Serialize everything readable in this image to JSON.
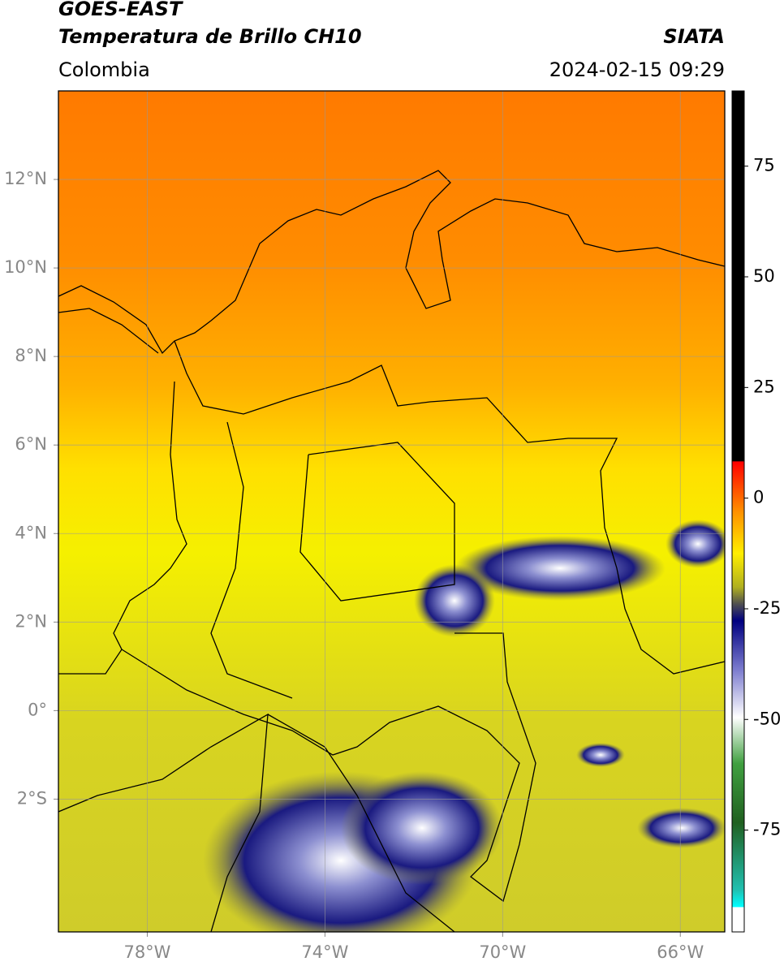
{
  "header": {
    "title": "GOES-EAST",
    "subtitle": "Temperatura de Brillo CH10",
    "source": "SIATA",
    "region": "Colombia",
    "datetime": "2024-02-15 09:29"
  },
  "chart_data": {
    "type": "map",
    "xlim": [
      -80,
      -65
    ],
    "ylim": [
      -5,
      14
    ],
    "xticks": [
      {
        "value": -78,
        "label": "78°W"
      },
      {
        "value": -74,
        "label": "74°W"
      },
      {
        "value": -70,
        "label": "70°W"
      },
      {
        "value": -66,
        "label": "66°W"
      }
    ],
    "yticks": [
      {
        "value": 12,
        "label": "12°N"
      },
      {
        "value": 10,
        "label": "10°N"
      },
      {
        "value": 8,
        "label": "8°N"
      },
      {
        "value": 6,
        "label": "6°N"
      },
      {
        "value": 4,
        "label": "4°N"
      },
      {
        "value": 2,
        "label": "2°N"
      },
      {
        "value": 0,
        "label": "0°"
      },
      {
        "value": -2,
        "label": "2°S"
      }
    ],
    "grid": true,
    "colorbar": {
      "lim": [
        -98,
        92
      ],
      "ticks": [
        75,
        50,
        25,
        0,
        -25,
        -50,
        -75
      ]
    }
  }
}
